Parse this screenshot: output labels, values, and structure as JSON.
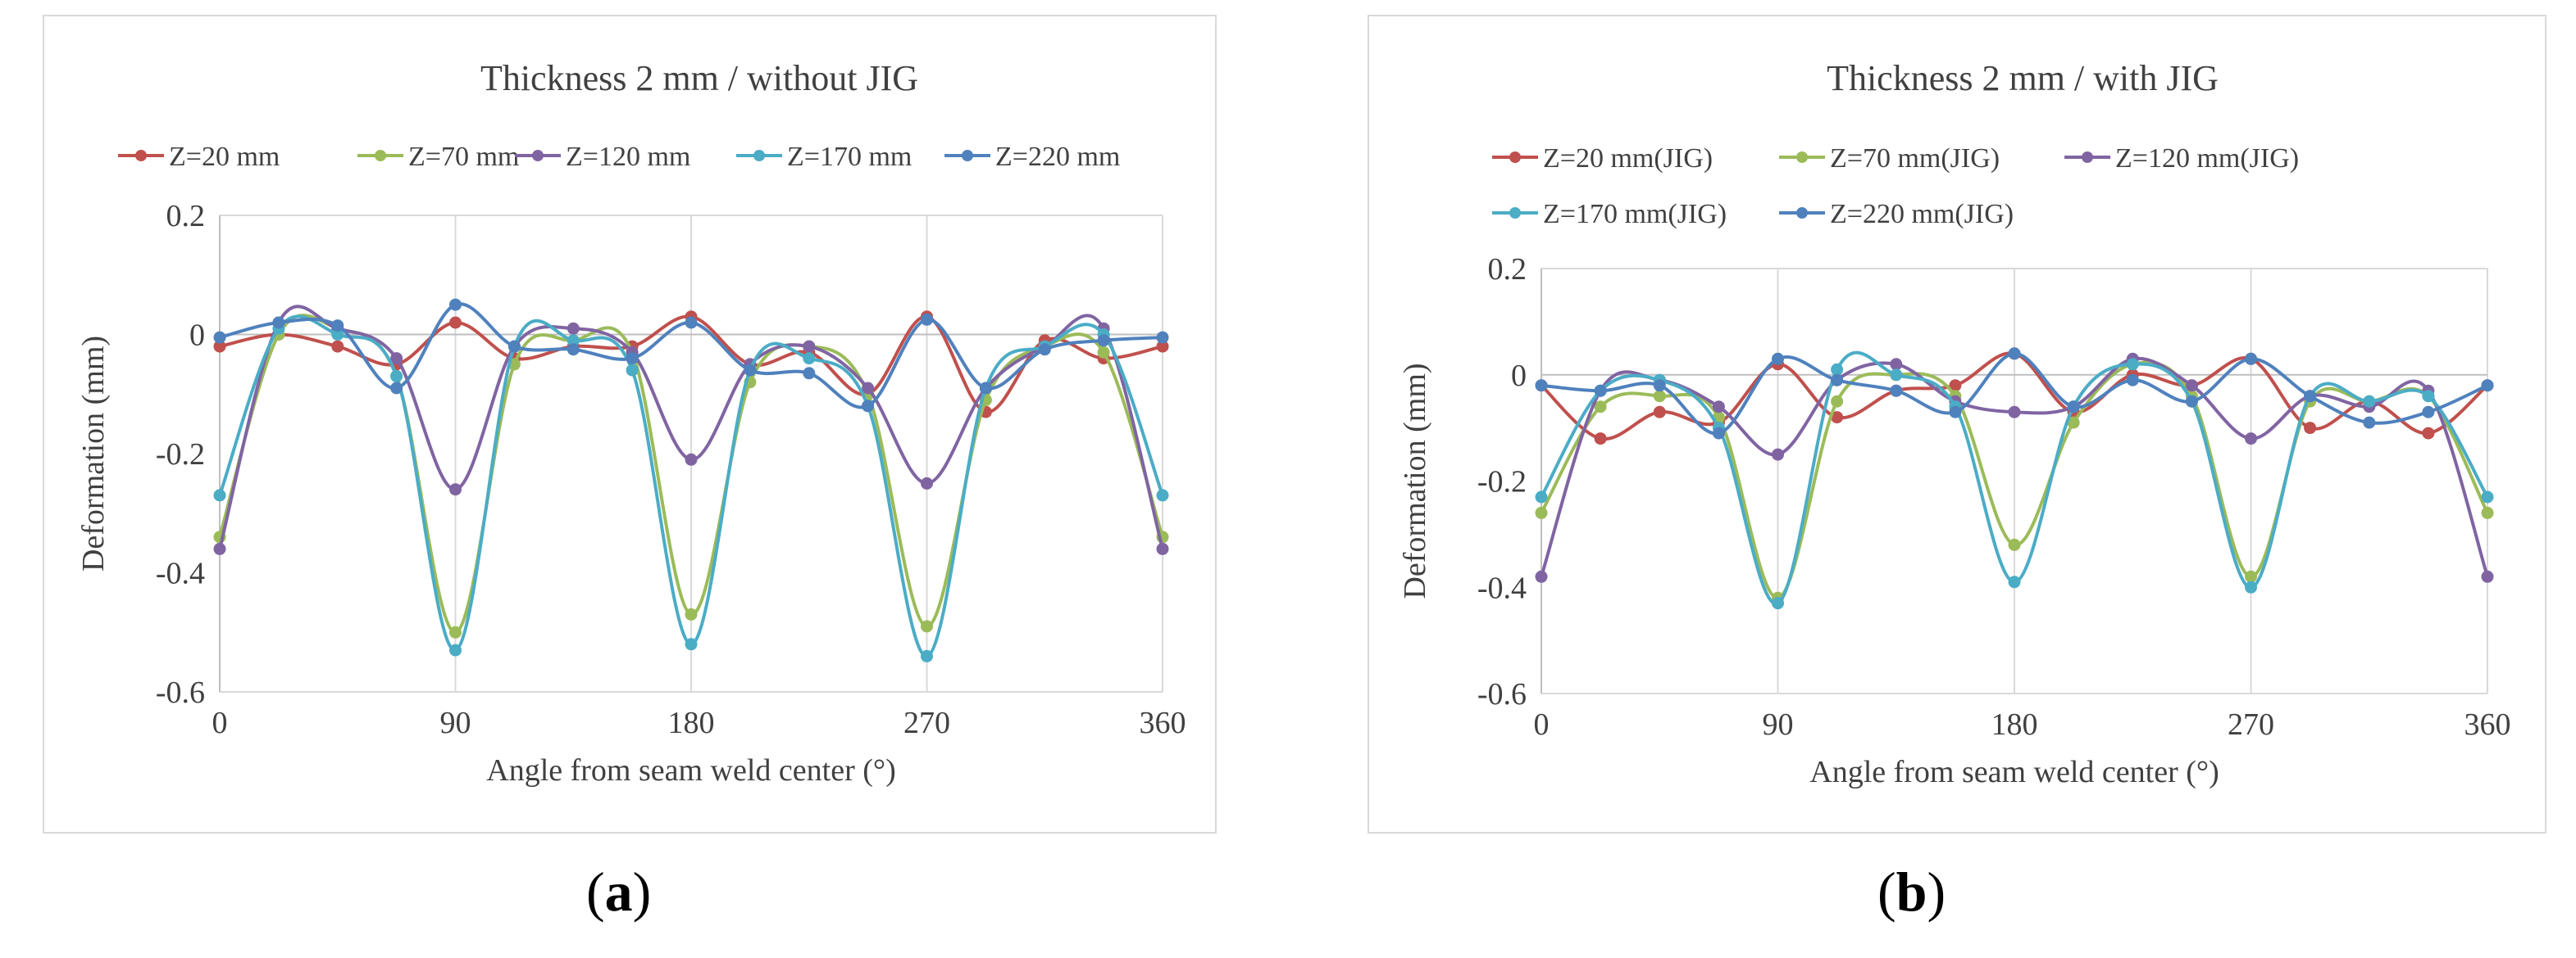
{
  "panels": [
    {
      "caption": "a",
      "chart_data": {
        "type": "line",
        "title": "Thickness 2 mm / without JIG",
        "xlabel": "Angle from seam weld center (°)",
        "ylabel": "Deformation (mm)",
        "xlim": [
          0,
          360
        ],
        "ylim": [
          -0.6,
          0.2
        ],
        "xticks": [
          0,
          90,
          180,
          270,
          360
        ],
        "yticks": [
          0.2,
          0,
          -0.2,
          -0.4,
          -0.6
        ],
        "xtick_labels": [
          "0",
          "90",
          "180",
          "270",
          "360"
        ],
        "ytick_labels": [
          "0.2",
          "0",
          "-0.2",
          "-0.4",
          "-0.6"
        ],
        "legend": "top",
        "x": [
          0,
          22.5,
          45,
          67.5,
          90,
          112.5,
          135,
          157.5,
          180,
          202.5,
          225,
          247.5,
          270,
          292.5,
          315,
          337.5,
          360
        ],
        "series": [
          {
            "name": "Z=20 mm",
            "color": "#c0504d",
            "values": [
              -0.02,
              0.0,
              -0.02,
              -0.05,
              0.02,
              -0.04,
              -0.02,
              -0.02,
              0.03,
              -0.05,
              -0.03,
              -0.1,
              0.03,
              -0.13,
              -0.01,
              -0.04,
              -0.02
            ]
          },
          {
            "name": "Z=70 mm",
            "color": "#9bbb59",
            "values": [
              -0.34,
              0.0,
              0.01,
              -0.07,
              -0.5,
              -0.05,
              -0.01,
              -0.03,
              -0.47,
              -0.08,
              -0.02,
              -0.1,
              -0.49,
              -0.11,
              -0.02,
              -0.03,
              -0.34
            ]
          },
          {
            "name": "Z=120 mm",
            "color": "#8064a2",
            "values": [
              -0.36,
              0.02,
              0.01,
              -0.04,
              -0.26,
              -0.02,
              0.01,
              -0.03,
              -0.21,
              -0.05,
              -0.02,
              -0.09,
              -0.25,
              -0.09,
              -0.02,
              0.01,
              -0.36
            ]
          },
          {
            "name": "Z=170 mm",
            "color": "#4bacc6",
            "values": [
              -0.27,
              0.01,
              0.0,
              -0.07,
              -0.53,
              -0.02,
              -0.01,
              -0.06,
              -0.52,
              -0.06,
              -0.04,
              -0.12,
              -0.54,
              -0.09,
              -0.02,
              0.0,
              -0.27
            ]
          },
          {
            "name": "Z=220 mm",
            "color": "#4f81bd",
            "values": [
              -0.005,
              0.02,
              0.015,
              -0.09,
              0.05,
              -0.02,
              -0.025,
              -0.04,
              0.02,
              -0.06,
              -0.065,
              -0.12,
              0.025,
              -0.09,
              -0.025,
              -0.01,
              -0.005
            ]
          }
        ]
      }
    },
    {
      "caption": "b",
      "chart_data": {
        "type": "line",
        "title": "Thickness 2 mm / with JIG",
        "xlabel": "Angle from seam weld center (°)",
        "ylabel": "Deformation (mm)",
        "xlim": [
          0,
          360
        ],
        "ylim": [
          -0.6,
          0.2
        ],
        "xticks": [
          0,
          90,
          180,
          270,
          360
        ],
        "yticks": [
          0.2,
          0,
          -0.2,
          -0.4,
          -0.6
        ],
        "xtick_labels": [
          "0",
          "90",
          "180",
          "270",
          "360"
        ],
        "ytick_labels": [
          "0.2",
          "0",
          "-0.2",
          "-0.4",
          "-0.6"
        ],
        "legend": "top",
        "x": [
          0,
          22.5,
          45,
          67.5,
          90,
          112.5,
          135,
          157.5,
          180,
          202.5,
          225,
          247.5,
          270,
          292.5,
          315,
          337.5,
          360
        ],
        "series": [
          {
            "name": "Z=20 mm(JIG)",
            "color": "#c0504d",
            "values": [
              -0.02,
              -0.12,
              -0.07,
              -0.09,
              0.02,
              -0.08,
              -0.03,
              -0.02,
              0.04,
              -0.07,
              0.0,
              -0.02,
              0.03,
              -0.1,
              -0.05,
              -0.11,
              -0.02
            ]
          },
          {
            "name": "Z=70 mm(JIG)",
            "color": "#9bbb59",
            "values": [
              -0.26,
              -0.06,
              -0.04,
              -0.08,
              -0.42,
              -0.05,
              0.0,
              -0.04,
              -0.32,
              -0.09,
              0.02,
              -0.04,
              -0.38,
              -0.05,
              -0.05,
              -0.04,
              -0.26
            ]
          },
          {
            "name": "Z=120 mm(JIG)",
            "color": "#8064a2",
            "values": [
              -0.38,
              -0.03,
              -0.01,
              -0.06,
              -0.15,
              -0.01,
              0.02,
              -0.05,
              -0.07,
              -0.06,
              0.03,
              -0.02,
              -0.12,
              -0.04,
              -0.06,
              -0.03,
              -0.38
            ]
          },
          {
            "name": "Z=170 mm(JIG)",
            "color": "#4bacc6",
            "values": [
              -0.23,
              -0.03,
              -0.01,
              -0.1,
              -0.43,
              0.01,
              0.0,
              -0.06,
              -0.39,
              -0.06,
              0.02,
              -0.05,
              -0.4,
              -0.04,
              -0.05,
              -0.04,
              -0.23
            ]
          },
          {
            "name": "Z=220 mm(JIG)",
            "color": "#4f81bd",
            "values": [
              -0.02,
              -0.03,
              -0.02,
              -0.11,
              0.03,
              -0.01,
              -0.03,
              -0.07,
              0.04,
              -0.06,
              -0.01,
              -0.05,
              0.03,
              -0.04,
              -0.09,
              -0.07,
              -0.02
            ]
          }
        ]
      }
    }
  ]
}
